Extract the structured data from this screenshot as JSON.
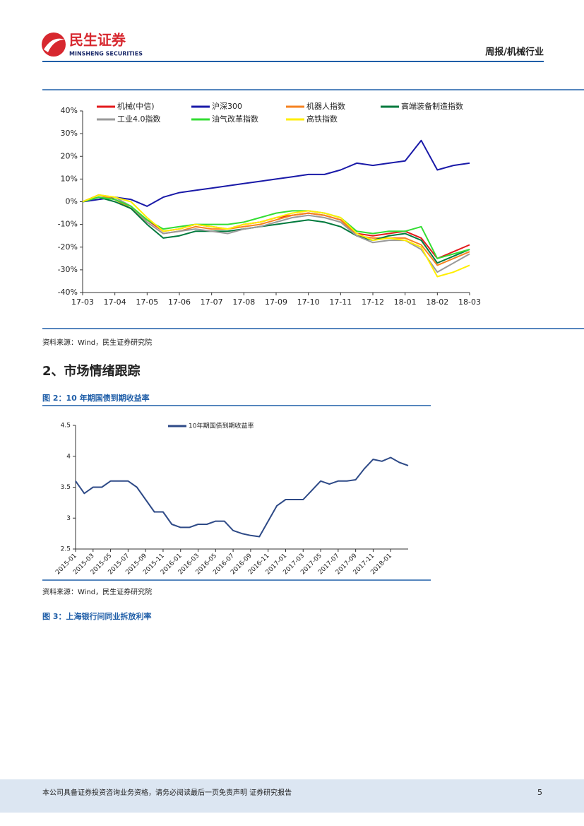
{
  "header": {
    "logo_cn": "民生证券",
    "logo_en": "MINSHENG SECURITIES",
    "report_type": "周报/机械行业"
  },
  "chart_data": [
    {
      "type": "line",
      "categories": [
        "17-03",
        null,
        "17-04",
        null,
        "17-05",
        null,
        "17-06",
        null,
        "17-07",
        null,
        "17-08",
        null,
        "17-09",
        null,
        "17-10",
        null,
        "17-11",
        null,
        "17-12",
        null,
        "18-01",
        null,
        "18-02",
        null,
        "18-03"
      ],
      "series": [
        {
          "name": "机械(中信)",
          "color": "#e31a1c",
          "values": [
            0,
            3,
            1,
            -3,
            -8,
            -13,
            -12,
            -10,
            -11,
            -12,
            -10,
            -9,
            -7,
            -6,
            -5,
            -6,
            -8,
            -14,
            -15,
            -14,
            -13,
            -16,
            -25,
            -22,
            -19
          ]
        },
        {
          "name": "沪深300",
          "color": "#1a1aa8",
          "values": [
            0,
            1,
            2,
            1,
            -2,
            2,
            4,
            5,
            6,
            7,
            8,
            9,
            10,
            11,
            12,
            12,
            14,
            17,
            16,
            17,
            18,
            27,
            14,
            16,
            17
          ]
        },
        {
          "name": "机器人指数",
          "color": "#f58220",
          "values": [
            0,
            3,
            1,
            -3,
            -9,
            -14,
            -13,
            -11,
            -12,
            -12,
            -11,
            -10,
            -8,
            -6,
            -5,
            -6,
            -8,
            -15,
            -16,
            -16,
            -16,
            -19,
            -28,
            -25,
            -22
          ]
        },
        {
          "name": "高端装备制造指数",
          "color": "#007a3d",
          "values": [
            0,
            2,
            0,
            -3,
            -10,
            -16,
            -15,
            -13,
            -13,
            -13,
            -12,
            -11,
            -10,
            -9,
            -8,
            -9,
            -11,
            -15,
            -17,
            -15,
            -14,
            -17,
            -27,
            -24,
            -21
          ]
        },
        {
          "name": "工业4.0指数",
          "color": "#9a9a9a",
          "values": [
            0,
            3,
            2,
            -2,
            -9,
            -14,
            -13,
            -12,
            -13,
            -14,
            -12,
            -11,
            -9,
            -7,
            -6,
            -7,
            -9,
            -15,
            -18,
            -17,
            -17,
            -21,
            -31,
            -27,
            -23
          ]
        },
        {
          "name": "油气改革指数",
          "color": "#33dd33",
          "values": [
            0,
            2,
            1,
            -2,
            -8,
            -12,
            -11,
            -10,
            -10,
            -10,
            -9,
            -7,
            -5,
            -4,
            -4,
            -5,
            -7,
            -13,
            -14,
            -13,
            -13,
            -11,
            -25,
            -23,
            -21
          ]
        },
        {
          "name": "高铁指数",
          "color": "#ffee00",
          "values": [
            0,
            3,
            2,
            0,
            -7,
            -13,
            -12,
            -10,
            -11,
            -12,
            -10,
            -9,
            -7,
            -5,
            -4,
            -5,
            -7,
            -14,
            -17,
            -16,
            -17,
            -20,
            -33,
            -31,
            -28
          ]
        }
      ],
      "ylim": [
        -40,
        40
      ],
      "yticks": [
        {
          "value": -40,
          "label": "-40%"
        },
        {
          "value": -30,
          "label": "-30%"
        },
        {
          "value": -20,
          "label": "-20%"
        },
        {
          "value": -10,
          "label": "-10%"
        },
        {
          "value": 0,
          "label": "0%"
        },
        {
          "value": 10,
          "label": "10%"
        },
        {
          "value": 20,
          "label": "20%"
        },
        {
          "value": 30,
          "label": "30%"
        },
        {
          "value": 40,
          "label": "40%"
        }
      ],
      "legend": "top"
    },
    {
      "type": "line",
      "categories": [
        "2015-01",
        null,
        "2015-03",
        null,
        "2015-05",
        null,
        "2015-07",
        null,
        "2015-09",
        null,
        "2015-11",
        null,
        "2016-01",
        null,
        "2016-03",
        null,
        "2016-05",
        null,
        "2016-07",
        null,
        "2016-09",
        null,
        "2016-11",
        null,
        "2017-01",
        null,
        "2017-03",
        null,
        "2017-05",
        null,
        "2017-07",
        null,
        "2017-09",
        null,
        "2017-11",
        null,
        "2018-01",
        null,
        null
      ],
      "series": [
        {
          "name": "10年期国债到期收益率",
          "color": "#2e4a87",
          "values": [
            3.6,
            3.4,
            3.5,
            3.5,
            3.6,
            3.6,
            3.6,
            3.5,
            3.3,
            3.1,
            3.1,
            2.9,
            2.85,
            2.85,
            2.9,
            2.9,
            2.95,
            2.95,
            2.8,
            2.75,
            2.72,
            2.7,
            2.95,
            3.2,
            3.3,
            3.3,
            3.3,
            3.45,
            3.6,
            3.55,
            3.6,
            3.6,
            3.62,
            3.8,
            3.95,
            3.92,
            3.98,
            3.9,
            3.85
          ]
        }
      ],
      "ylim": [
        2.5,
        4.5
      ],
      "yticks": [
        2.5,
        3,
        3.5,
        4,
        4.5
      ],
      "legend": "top"
    }
  ],
  "source_1": "资料来源：Wind，民生证券研究院",
  "section_title": "2、市场情绪跟踪",
  "figure_2_title": "图 2：10 年期国债到期收益率",
  "source_2": "资料来源：Wind，民生证券研究院",
  "figure_3_title": "图 3：上海银行间同业拆放利率",
  "footer": {
    "disclaimer": "本公司具备证券投资咨询业务资格，请务必阅读最后一页免责声明 证券研究报告",
    "page": "5"
  }
}
